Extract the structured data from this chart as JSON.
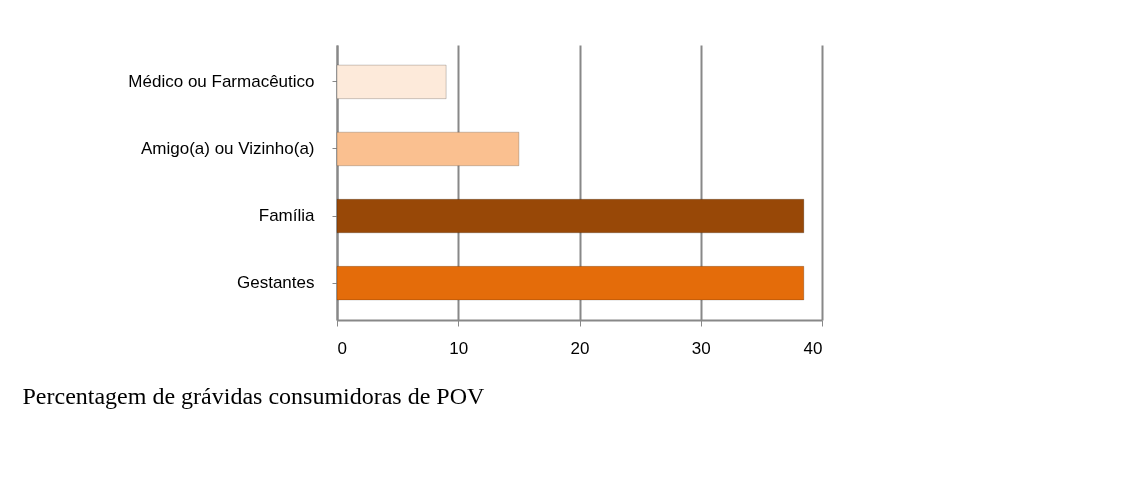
{
  "chart_data": {
    "type": "bar",
    "orientation": "horizontal",
    "xlabel": "Percentagem de grávidas consumidoras de POV",
    "categories": [
      "Médico ou Farmacêutico",
      "Amigo(a) ou Vizinho(a)",
      "Família",
      "Gestantes"
    ],
    "values": [
      9,
      15,
      38.5,
      38.5
    ],
    "colors": [
      "#fdeada",
      "#fac090",
      "#984807",
      "#e46c0a"
    ],
    "xlim": [
      0,
      40
    ],
    "xticks": [
      0,
      10,
      20,
      30,
      40
    ],
    "grid": "x"
  }
}
